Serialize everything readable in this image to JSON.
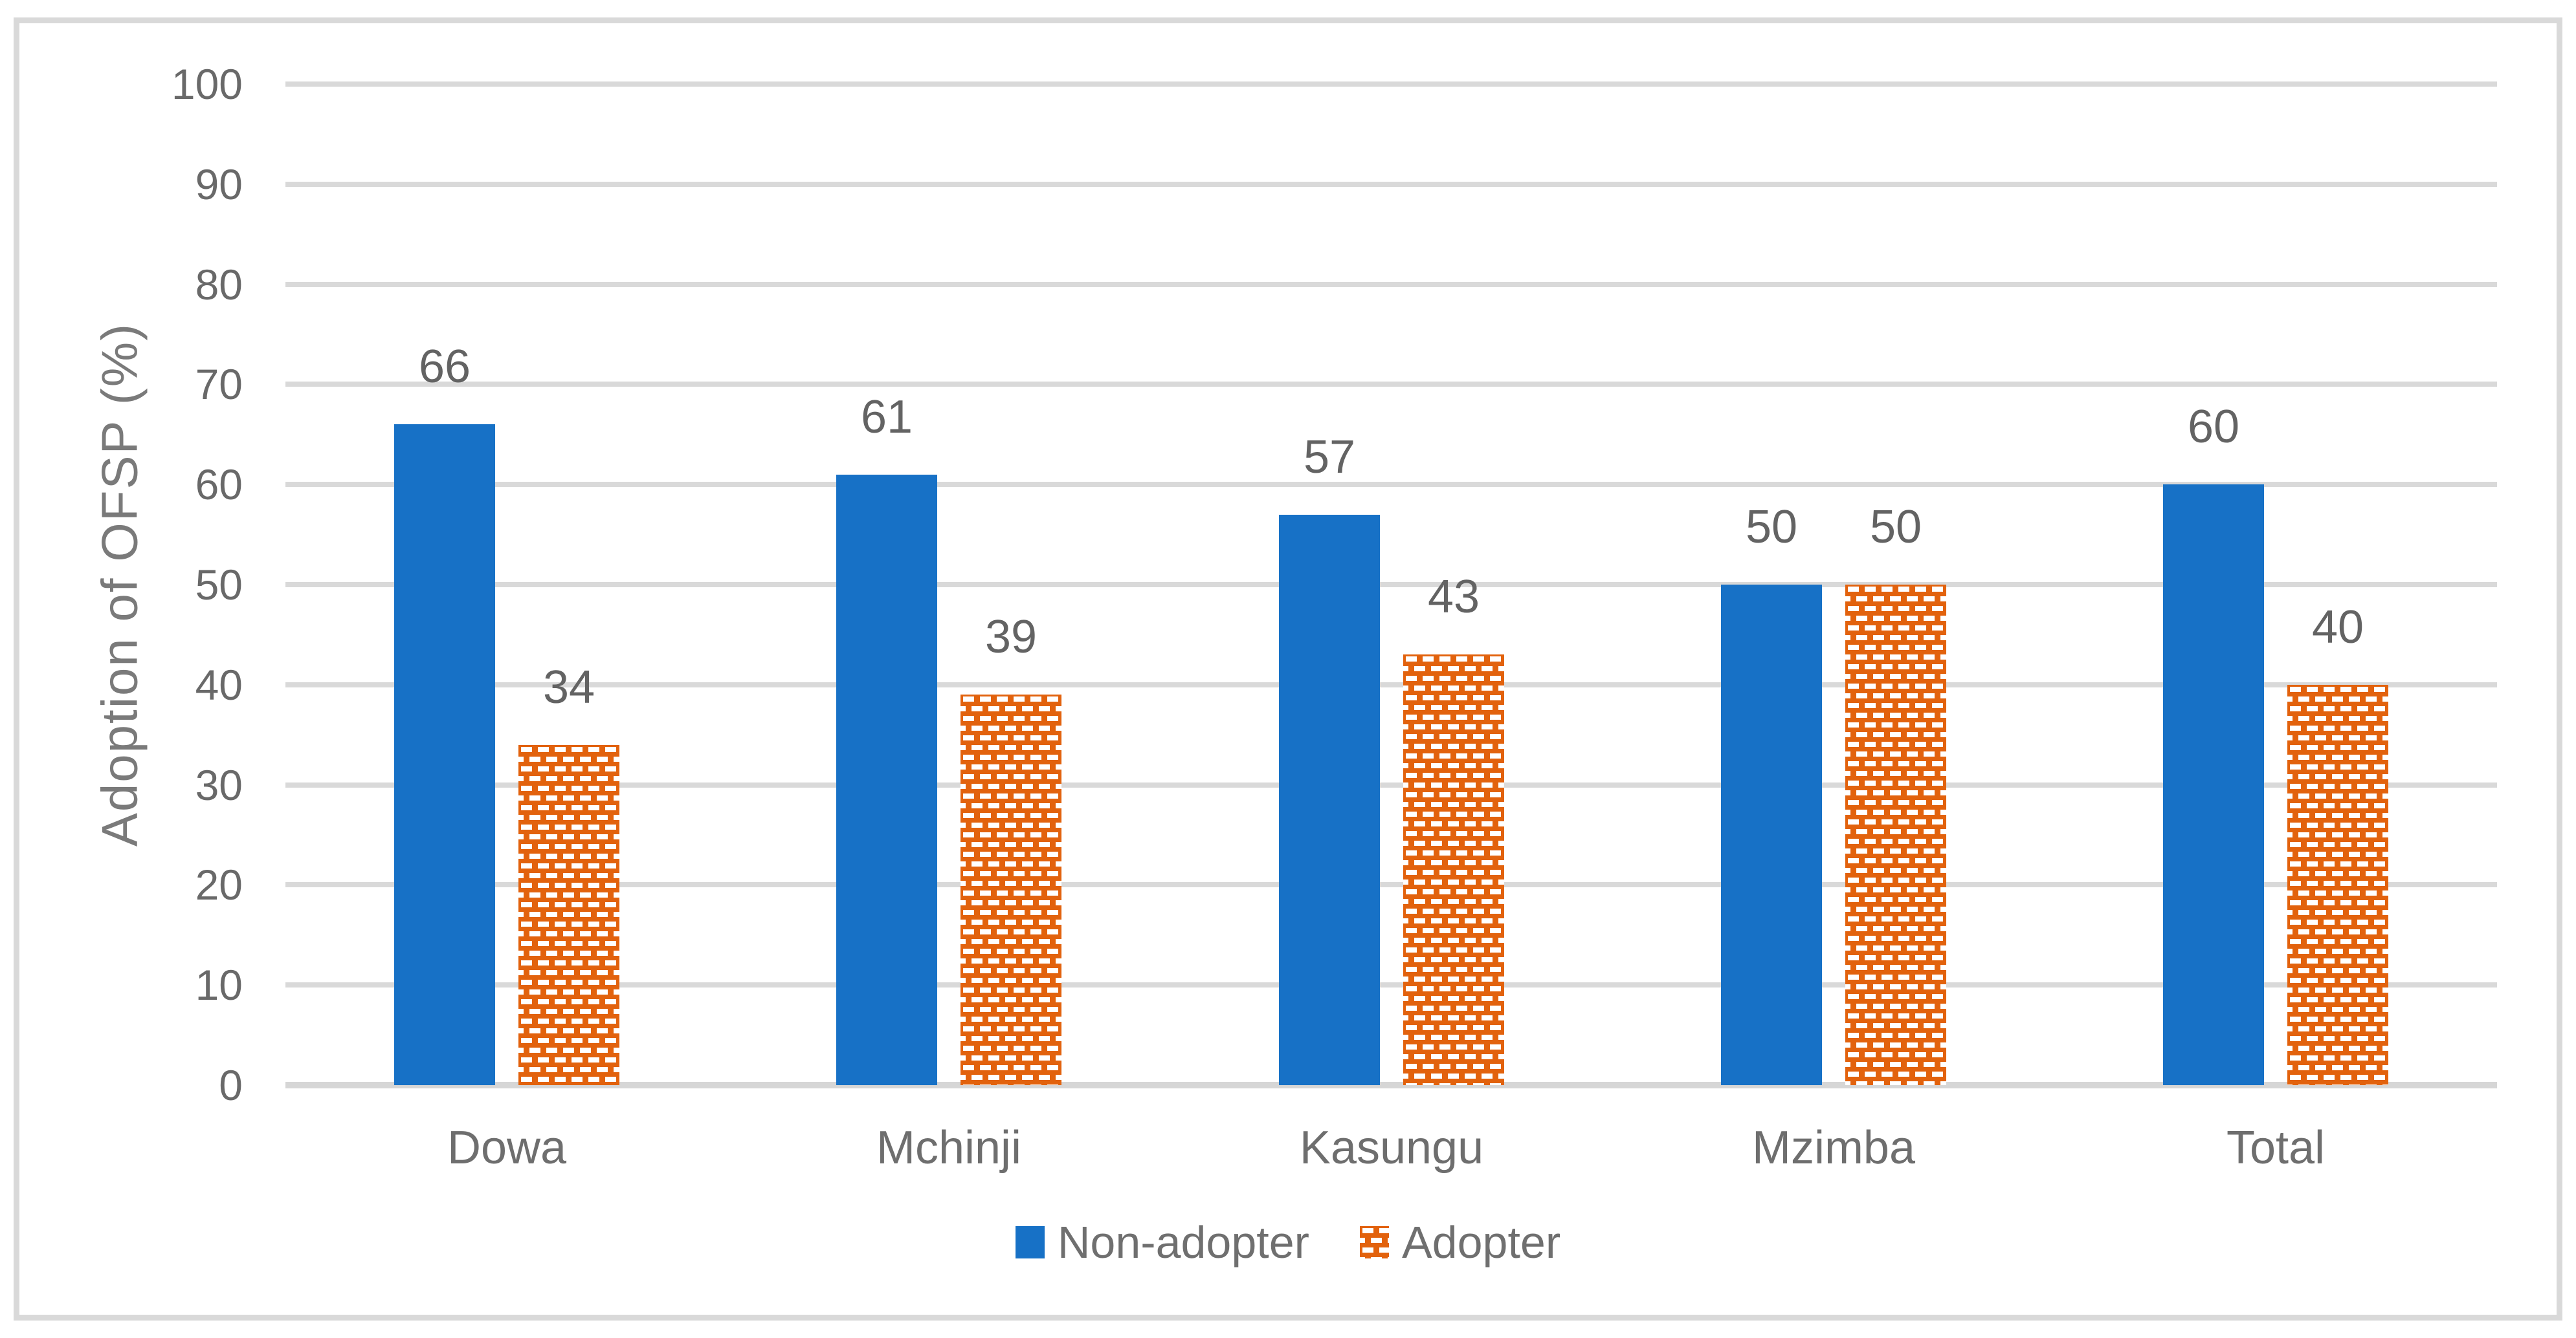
{
  "figure": {
    "kind": "excel-style-clustered-bar-chart",
    "background": "#FFFFFF",
    "border_color": "#D9D9D9"
  },
  "colors": {
    "grid": "#D9D9D9",
    "axis_line": "#D6D6D6",
    "tick_text": "#696969",
    "data_label_text": "#636363",
    "category_text": "#6E6E6E",
    "axis_title_text": "#7A7A7A",
    "legend_text": "#6F6F6F",
    "non_adopter_blue": "#1771C6",
    "adopter_orange": "#E2620D",
    "pattern_dash_white": "#FFFFFF"
  },
  "chart_data": {
    "type": "bar",
    "title": "",
    "categories": [
      "Dowa",
      "Mchinji",
      "Kasungu",
      "Mzimba",
      "Total"
    ],
    "series": [
      {
        "name": "Non-adopter",
        "values": [
          66,
          61,
          57,
          50,
          60
        ],
        "color": "#1771C6",
        "fill_style": "solid",
        "marker": "blue-solid-square"
      },
      {
        "name": "Adopter",
        "values": [
          34,
          39,
          43,
          50,
          40
        ],
        "color": "#E2620D",
        "fill_style": "dashed-brick-pattern",
        "marker": "orange-pattern-square"
      }
    ],
    "data_labels": {
      "position": "outside-end",
      "values_by_series": [
        [
          66,
          61,
          57,
          50,
          60
        ],
        [
          34,
          39,
          43,
          50,
          40
        ]
      ]
    },
    "xlabel": "",
    "ylabel": "Adoption of OFSP (%)",
    "ylim": [
      0,
      100
    ],
    "ytick_step": 10,
    "yticks": [
      0,
      10,
      20,
      30,
      40,
      50,
      60,
      70,
      80,
      90,
      100
    ],
    "grid": "horizontal-gridlines-on",
    "legend_position": "bottom-center",
    "legend_entries": [
      "Non-adopter",
      "Adopter"
    ]
  }
}
